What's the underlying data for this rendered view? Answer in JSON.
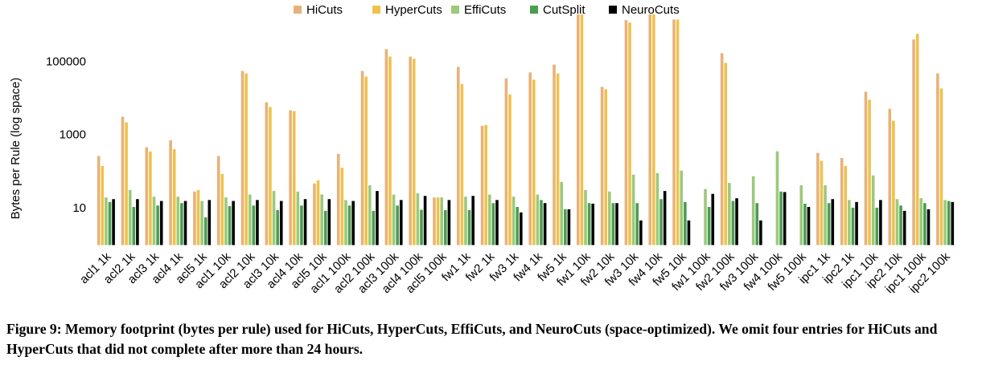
{
  "chart_data": {
    "type": "bar",
    "y_label": "Bytes per Rule (log space)",
    "caption": "Figure 9: Memory footprint (bytes per rule) used for HiCuts, HyperCuts, EffiCuts, and NeuroCuts (space-optimized). We omit four entries for HiCuts and HyperCuts that did not complete after more than 24 hours.",
    "log_scale": true,
    "grid": false,
    "legend": "top",
    "ylim": [
      1,
      2000000
    ],
    "yticks": [
      10,
      1000,
      100000
    ],
    "categories": [
      "acl1 1k",
      "acl2 1k",
      "acl3 1k",
      "acl4 1k",
      "acl5 1k",
      "acl1 10k",
      "acl2 10k",
      "acl3 10k",
      "acl4 10k",
      "acl5 10k",
      "acl1 100k",
      "acl2 100k",
      "acl3 100k",
      "acl4 100k",
      "acl5 100k",
      "fw1 1k",
      "fw2 1k",
      "fw3 1k",
      "fw4 1k",
      "fw5 1k",
      "fw1 10k",
      "fw2 10k",
      "fw3 10k",
      "fw4 10k",
      "fw5 10k",
      "fw1 100k",
      "fw2 100k",
      "fw3 100k",
      "fw4 100k",
      "fw5 100k",
      "ipc1 1k",
      "ipc2 1k",
      "ipc1 10k",
      "ipc2 10k",
      "ipc1 100k",
      "ipc2 100k"
    ],
    "series": [
      {
        "name": "HiCuts",
        "color": "#e8b27a",
        "values": [
          270,
          3200,
          470,
          730,
          29,
          270,
          57000,
          8000,
          4800,
          48,
          310,
          57000,
          225000,
          141000,
          20,
          74000,
          1800,
          36000,
          52000,
          85000,
          2000000,
          21000,
          1400000,
          2000000,
          1450000,
          null,
          175000,
          null,
          null,
          null,
          330,
          240,
          15500,
          5300,
          415000,
          49000
        ]
      },
      {
        "name": "HyperCuts",
        "color": "#f0c24a",
        "values": [
          145,
          2250,
          360,
          420,
          32,
          88,
          49000,
          5900,
          4600,
          59,
          130,
          40000,
          141000,
          123000,
          20,
          25000,
          1900,
          13000,
          33000,
          49000,
          2000000,
          18000,
          1200000,
          2000000,
          1450000,
          null,
          95000,
          null,
          null,
          null,
          200,
          145,
          9300,
          2500,
          590000,
          19000
        ]
      },
      {
        "name": "EffiCuts",
        "color": "#9cc97a",
        "values": [
          20,
          32,
          21,
          21,
          16,
          20,
          24,
          30,
          29,
          24,
          17,
          43,
          24,
          26,
          20,
          21,
          24,
          21,
          24,
          53,
          32,
          29,
          84,
          93,
          108,
          34,
          50,
          76,
          365,
          43,
          43,
          17,
          80,
          18,
          19,
          17
        ]
      },
      {
        "name": "CutSplit",
        "color": "#4a9e4f",
        "values": [
          15,
          11,
          12,
          14,
          5.7,
          11.6,
          12,
          9,
          12,
          8.6,
          12,
          8.6,
          12,
          9.2,
          9,
          9,
          14,
          11,
          17,
          9.5,
          14,
          14,
          14,
          18,
          15,
          11,
          16,
          14,
          29,
          13.5,
          14,
          10.5,
          10.5,
          12,
          14,
          16
        ]
      },
      {
        "name": "NeuroCuts",
        "color": "#000000",
        "values": [
          18,
          18,
          16,
          16,
          17,
          16,
          17,
          16,
          18,
          18,
          16,
          30,
          17,
          22,
          17,
          22,
          17,
          7.8,
          14,
          9.5,
          13.5,
          14,
          4.7,
          30,
          4.7,
          25,
          19,
          4.7,
          28,
          11,
          18,
          15,
          17,
          8.6,
          9.5,
          15
        ]
      }
    ]
  }
}
